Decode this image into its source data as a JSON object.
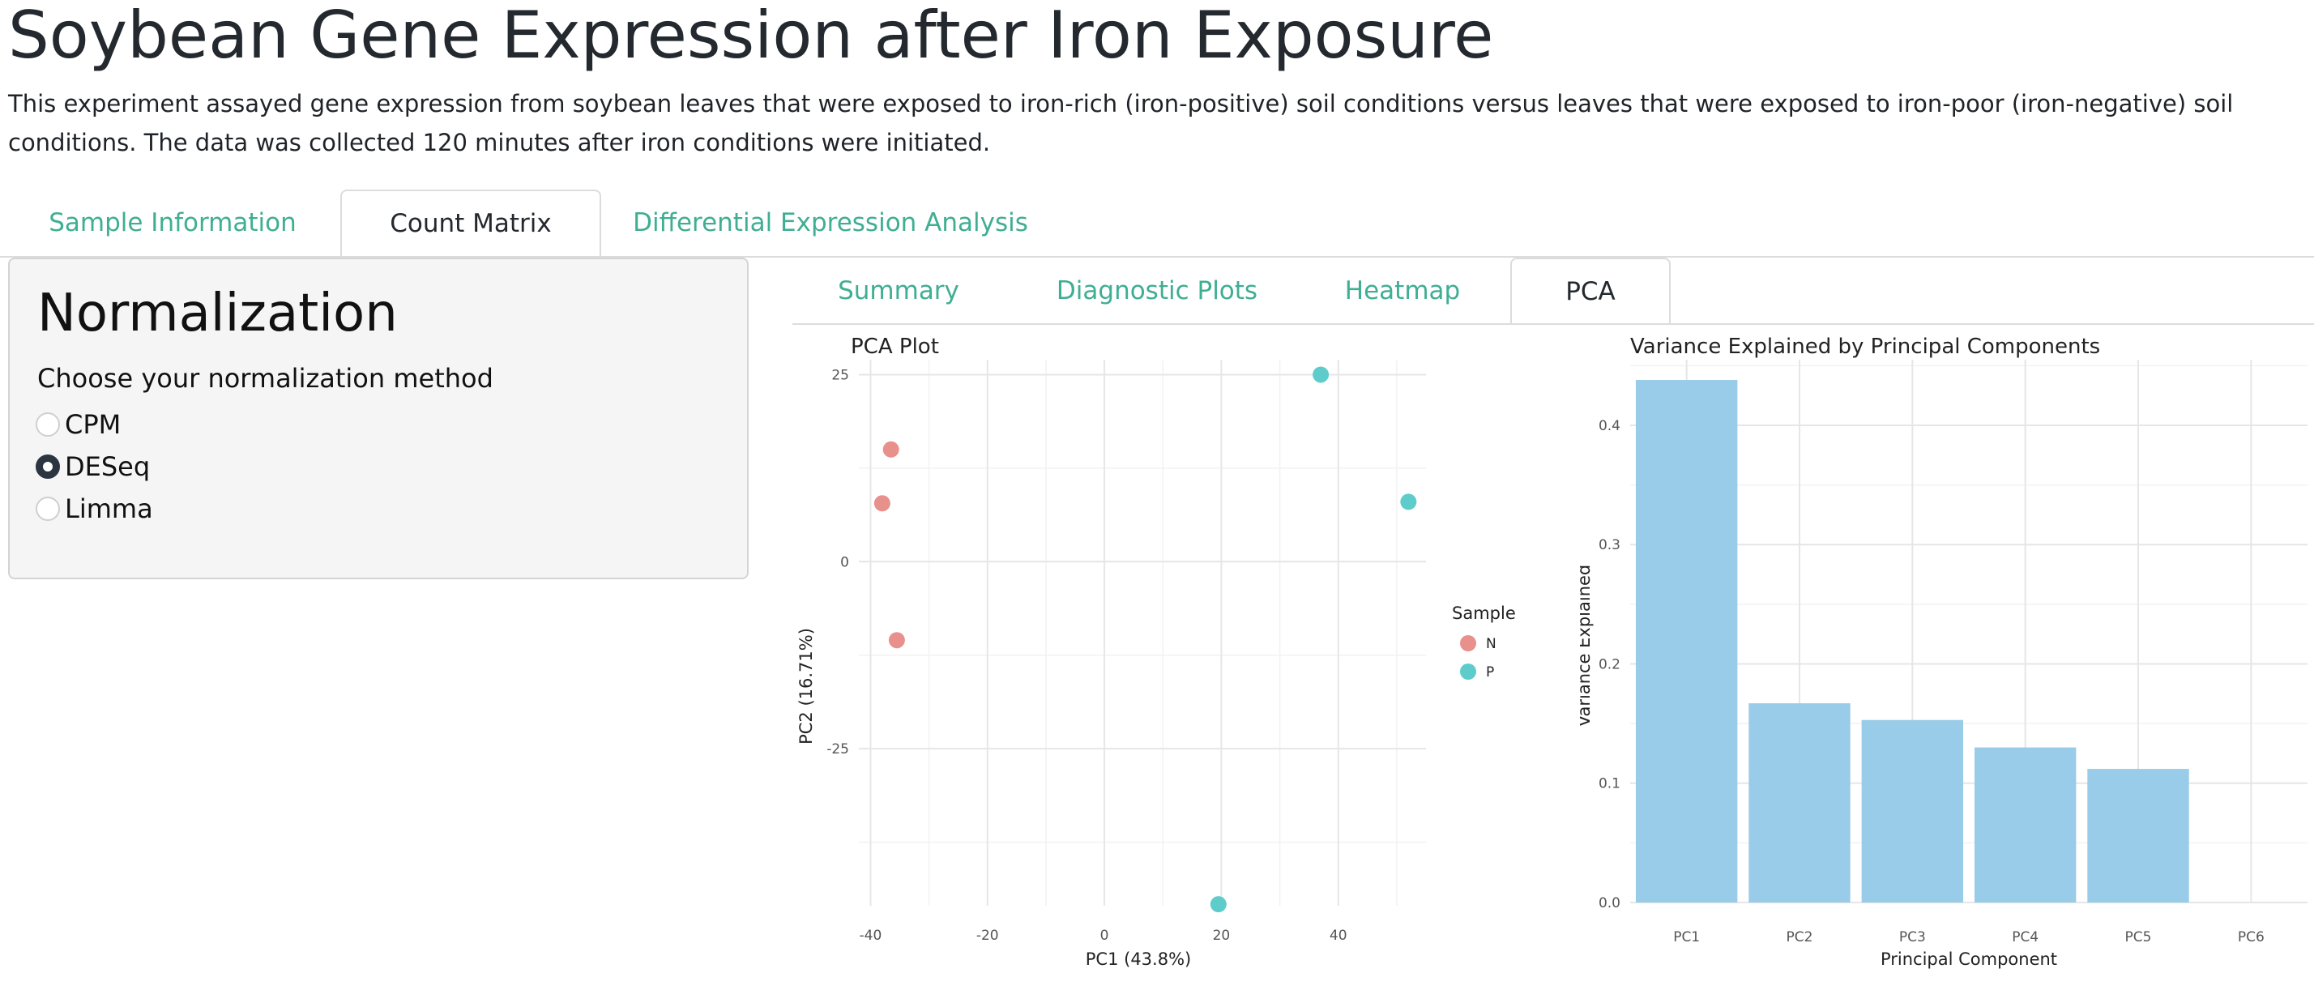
{
  "header": {
    "title": "Soybean Gene Expression after Iron Exposure",
    "description": "This experiment assayed gene expression from soybean leaves that were exposed to iron-rich (iron-positive) soil conditions versus leaves that were exposed to iron-poor (iron-negative) soil conditions. The data was collected 120 minutes after iron conditions were initiated."
  },
  "main_tabs": [
    {
      "label": "Sample Information",
      "active": false
    },
    {
      "label": "Count Matrix",
      "active": true
    },
    {
      "label": "Differential Expression Analysis",
      "active": false
    }
  ],
  "sidebar": {
    "heading": "Normalization",
    "label": "Choose your normalization method",
    "options": [
      {
        "label": "CPM",
        "checked": false
      },
      {
        "label": "DESeq",
        "checked": true
      },
      {
        "label": "Limma",
        "checked": false
      }
    ]
  },
  "sub_tabs": [
    {
      "label": "Summary",
      "active": false
    },
    {
      "label": "Diagnostic Plots",
      "active": false
    },
    {
      "label": "Heatmap",
      "active": false
    },
    {
      "label": "PCA",
      "active": true
    }
  ],
  "colors": {
    "accent": "#3fae93",
    "group_N": "#e8908c",
    "group_P": "#5fcccc",
    "bar": "#99cce8"
  },
  "chart_data": [
    {
      "type": "scatter",
      "title": "PCA Plot",
      "xlabel": "PC1 (43.8%)",
      "ylabel": "PC2 (16.71%)",
      "xlim": [
        -42,
        55
      ],
      "ylim": [
        -46,
        27
      ],
      "x_ticks": [
        -40,
        -20,
        0,
        20,
        40
      ],
      "y_ticks": [
        25,
        0,
        -25
      ],
      "legend": {
        "title": "Sample",
        "placement": "right",
        "entries": [
          "N",
          "P"
        ]
      },
      "series": [
        {
          "name": "N",
          "color": "#e8908c",
          "points": [
            [
              -36.5,
              15
            ],
            [
              -38,
              7.8
            ],
            [
              -35.5,
              -10.5
            ]
          ]
        },
        {
          "name": "P",
          "color": "#5fcccc",
          "points": [
            [
              37,
              25
            ],
            [
              52,
              8
            ],
            [
              19.5,
              -45.8
            ]
          ]
        }
      ],
      "grid": true
    },
    {
      "type": "bar",
      "title": "Variance Explained by Principal Components",
      "xlabel": "Principal Component",
      "ylabel": "Variance Explained",
      "categories": [
        "PC1",
        "PC2",
        "PC3",
        "PC4",
        "PC5",
        "PC6"
      ],
      "values": [
        0.438,
        0.167,
        0.153,
        0.13,
        0.112,
        0.0
      ],
      "ylim": [
        0,
        0.455
      ],
      "y_ticks": [
        0.0,
        0.1,
        0.2,
        0.3,
        0.4
      ],
      "color": "#99cce8",
      "grid": true
    }
  ]
}
